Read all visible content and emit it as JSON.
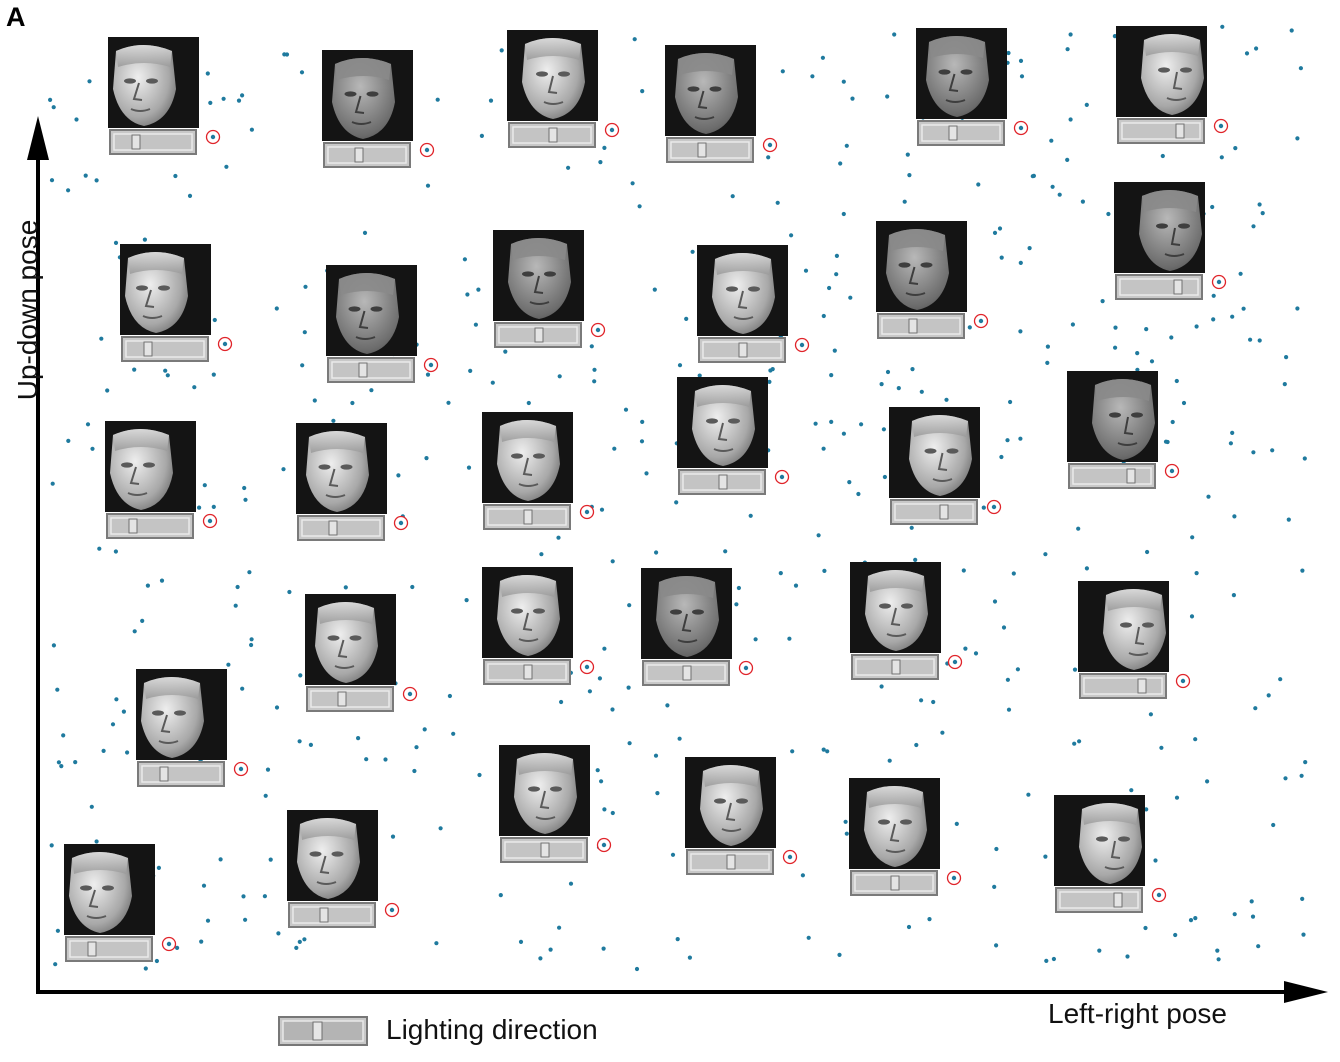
{
  "figure": {
    "panel_label": "A",
    "y_axis_label": "Up-down pose",
    "x_axis_label": "Left-right pose",
    "legend_label": "Lighting direction"
  },
  "colors": {
    "point": "#1f7a9e",
    "highlight_ring": "#e0242a",
    "face_background": "#141414",
    "slider_fill": "#c4c4c4"
  },
  "chart_data": {
    "type": "scatter",
    "title": "",
    "xlabel": "Left-right pose",
    "ylabel": "Up-down pose",
    "axes_ticks": false,
    "grid": false,
    "legend": {
      "position": "bottom-left",
      "entries": [
        "Lighting direction"
      ]
    },
    "faces_shown": 32,
    "points": [
      [
        0.05,
        0.05
      ],
      [
        0.12,
        0.03
      ],
      [
        0.22,
        0.09
      ],
      [
        0.31,
        0.15
      ],
      [
        0.44,
        0.17
      ],
      [
        0.54,
        0.14
      ],
      [
        0.7,
        0.14
      ],
      [
        0.79,
        0.12
      ],
      [
        0.87,
        0.17
      ],
      [
        0.13,
        0.26
      ],
      [
        0.32,
        0.25
      ],
      [
        0.44,
        0.34
      ],
      [
        0.56,
        0.35
      ],
      [
        0.68,
        0.36
      ],
      [
        0.86,
        0.32
      ],
      [
        0.13,
        0.49
      ],
      [
        0.28,
        0.48
      ],
      [
        0.43,
        0.49
      ],
      [
        0.57,
        0.55
      ],
      [
        0.73,
        0.49
      ],
      [
        0.86,
        0.53
      ],
      [
        0.13,
        0.63
      ],
      [
        0.3,
        0.63
      ],
      [
        0.43,
        0.66
      ],
      [
        0.58,
        0.67
      ],
      [
        0.73,
        0.68
      ],
      [
        0.88,
        0.73
      ],
      [
        0.14,
        0.85
      ],
      [
        0.3,
        0.83
      ],
      [
        0.44,
        0.87
      ],
      [
        0.57,
        0.86
      ],
      [
        0.72,
        0.89
      ],
      [
        0.88,
        0.95
      ],
      [
        0.02,
        0.22
      ],
      [
        0.05,
        0.26
      ],
      [
        0.09,
        0.3
      ],
      [
        0.16,
        0.35
      ],
      [
        0.19,
        0.4
      ],
      [
        0.24,
        0.38
      ],
      [
        0.27,
        0.34
      ],
      [
        0.36,
        0.42
      ],
      [
        0.39,
        0.44
      ],
      [
        0.46,
        0.24
      ],
      [
        0.49,
        0.28
      ],
      [
        0.51,
        0.38
      ],
      [
        0.58,
        0.42
      ],
      [
        0.61,
        0.46
      ],
      [
        0.64,
        0.4
      ],
      [
        0.66,
        0.3
      ],
      [
        0.75,
        0.39
      ],
      [
        0.79,
        0.44
      ],
      [
        0.82,
        0.37
      ],
      [
        0.91,
        0.42
      ],
      [
        0.94,
        0.48
      ],
      [
        0.97,
        0.55
      ],
      [
        0.98,
        0.62
      ],
      [
        0.99,
        0.7
      ],
      [
        0.96,
        0.81
      ],
      [
        0.93,
        0.86
      ],
      [
        0.9,
        0.6
      ],
      [
        0.2,
        0.56
      ],
      [
        0.24,
        0.6
      ],
      [
        0.35,
        0.56
      ],
      [
        0.38,
        0.6
      ],
      [
        0.47,
        0.58
      ],
      [
        0.5,
        0.64
      ],
      [
        0.62,
        0.58
      ],
      [
        0.66,
        0.62
      ],
      [
        0.7,
        0.56
      ],
      [
        0.18,
        0.7
      ],
      [
        0.22,
        0.74
      ],
      [
        0.25,
        0.78
      ],
      [
        0.34,
        0.72
      ],
      [
        0.37,
        0.78
      ],
      [
        0.48,
        0.72
      ],
      [
        0.51,
        0.76
      ],
      [
        0.6,
        0.74
      ],
      [
        0.63,
        0.8
      ],
      [
        0.75,
        0.78
      ],
      [
        0.78,
        0.84
      ],
      [
        0.81,
        0.9
      ],
      [
        0.84,
        0.8
      ],
      [
        0.15,
        0.92
      ],
      [
        0.2,
        0.95
      ],
      [
        0.25,
        0.9
      ],
      [
        0.35,
        0.92
      ],
      [
        0.4,
        0.97
      ],
      [
        0.47,
        0.93
      ],
      [
        0.52,
        0.95
      ],
      [
        0.63,
        0.94
      ],
      [
        0.67,
        0.99
      ],
      [
        0.76,
        0.96
      ],
      [
        0.81,
        0.99
      ],
      [
        0.91,
        0.91
      ],
      [
        0.95,
        0.97
      ],
      [
        0.99,
        0.88
      ]
    ]
  }
}
